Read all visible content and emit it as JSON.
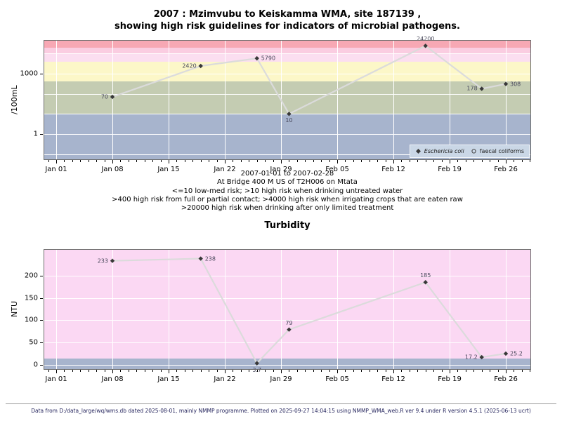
{
  "page": {
    "header": {
      "title_line1": "2007 : Mzimvubu to Keiskamma WMA, site 187139 ,",
      "title_line2": "showing high risk guidelines for indicators of microbial pathogens."
    },
    "subtitle_lines": [
      "2007-01-01 to 2007-02-28",
      "At Bridge 400 M US of T2H006 on Mtata",
      "<=10 low-med risk; >10 high risk when drinking untreated water",
      ">400 high risk from full or partial contact; >4000 high risk when irrigating crops that are eaten raw",
      ">20000 high risk when drinking after only limited treatment"
    ],
    "footer": "Data from D:/data_large/wq/wms.db dated 2025-08-01, mainly NMMP programme. Plotted on 2025-09-27 14:04:15 using NMMP_WMA_web.R ver 9.4 under R version 4.5.1 (2025-06-13 ucrt)"
  },
  "chart_data": [
    {
      "name": "microbial-indicators",
      "type": "line",
      "yscale": "log",
      "ylabel": "/100mL",
      "ylim_hint": [
        0.05,
        50000
      ],
      "line_color": "#dbdbdb",
      "marker_color": "#383838",
      "y_ticks": [
        {
          "value": 1000,
          "label": "1000"
        },
        {
          "value": 1,
          "label": "1"
        }
      ],
      "y_gridlines": [
        0.1,
        1,
        10,
        100,
        1000,
        10000
      ],
      "x_ticks": [
        {
          "day": 0,
          "label": "Jan 01"
        },
        {
          "day": 7,
          "label": "Jan 08"
        },
        {
          "day": 14,
          "label": "Jan 15"
        },
        {
          "day": 21,
          "label": "Jan 22"
        },
        {
          "day": 28,
          "label": "Jan 29"
        },
        {
          "day": 35,
          "label": "Feb 05"
        },
        {
          "day": 42,
          "label": "Feb 12"
        },
        {
          "day": 49,
          "label": "Feb 19"
        },
        {
          "day": 56,
          "label": "Feb 26"
        }
      ],
      "bands": [
        {
          "from_value": null,
          "to_value": 10,
          "color": "#a7b4cd",
          "meaning": "<=10 low-med risk"
        },
        {
          "from_value": 10,
          "to_value": 400,
          "color": "#c4ccb2",
          "meaning": ">10 high risk when drinking untreated water"
        },
        {
          "from_value": 400,
          "to_value": 4000,
          "color": "#fcf7c8",
          "meaning": ">400 high risk from full or partial contact"
        },
        {
          "from_value": 4000,
          "to_value": 10000,
          "color": "#fbdef0",
          "meaning": ">4000 high risk when irrigating crops that are eaten raw"
        },
        {
          "from_value": 10000,
          "to_value": 20000,
          "color": "#facde1",
          "meaning": "4000-20000 risk band (upper half)"
        },
        {
          "from_value": 20000,
          "to_value": null,
          "color": "#f7a8b4",
          "meaning": ">20000 high risk when drinking after only limited treatment"
        }
      ],
      "series": [
        {
          "name": "Eschericia coli",
          "marker": "filled-diamond",
          "points": [
            {
              "date": "Jan 08",
              "day": 7,
              "value": 70,
              "label": "70",
              "label_pos": "left"
            },
            {
              "date": "Jan 19",
              "day": 18,
              "value": 2420,
              "label": "2420",
              "label_pos": "left"
            },
            {
              "date": "Jan 26",
              "day": 25,
              "value": 5790,
              "label": "5790",
              "label_pos": "right"
            },
            {
              "date": "Jan 30",
              "day": 29,
              "value": 10,
              "label": "10",
              "label_pos": "below"
            },
            {
              "date": "Feb 16",
              "day": 46,
              "value": 24200,
              "label": "24200",
              "label_pos": "above"
            },
            {
              "date": "Feb 23",
              "day": 53,
              "value": 178,
              "label": "178",
              "label_pos": "left"
            },
            {
              "date": "Feb 26",
              "day": 56,
              "value": 308,
              "label": "308",
              "label_pos": "right"
            }
          ]
        }
      ],
      "legend": [
        {
          "label": "Eschericia coli",
          "marker": "filled-diamond",
          "italic": true
        },
        {
          "label": "faecal coliforms",
          "marker": "open-circle",
          "italic": false
        }
      ],
      "legend_bg": "#cad7e6"
    },
    {
      "name": "turbidity",
      "title": "Turbidity",
      "type": "line",
      "yscale": "linear",
      "ylabel": "NTU",
      "ylim_hint": [
        -13,
        259
      ],
      "line_color": "#dbdbdb",
      "marker_color": "#383838",
      "y_ticks": [
        {
          "value": 0,
          "label": "0"
        },
        {
          "value": 50,
          "label": "50"
        },
        {
          "value": 100,
          "label": "100"
        },
        {
          "value": 150,
          "label": "150"
        },
        {
          "value": 200,
          "label": "200"
        }
      ],
      "y_gridlines": [
        0,
        50,
        100,
        150,
        200
      ],
      "x_ticks": [
        {
          "day": 0,
          "label": "Jan 01"
        },
        {
          "day": 7,
          "label": "Jan 08"
        },
        {
          "day": 14,
          "label": "Jan 15"
        },
        {
          "day": 21,
          "label": "Jan 22"
        },
        {
          "day": 28,
          "label": "Jan 29"
        },
        {
          "day": 35,
          "label": "Feb 05"
        },
        {
          "day": 42,
          "label": "Feb 12"
        },
        {
          "day": 49,
          "label": "Feb 19"
        },
        {
          "day": 56,
          "label": "Feb 26"
        }
      ],
      "bands": [
        {
          "from_value": null,
          "to_value": 14,
          "color": "#a7b4cd",
          "meaning": "low turbidity guideline band"
        },
        {
          "from_value": 14,
          "to_value": null,
          "color": "#fbd8f3",
          "meaning": "above guideline"
        }
      ],
      "series": [
        {
          "name": "Turbidity",
          "marker": "filled-diamond",
          "points": [
            {
              "date": "Jan 08",
              "day": 7,
              "value": 233,
              "label": "233",
              "label_pos": "left"
            },
            {
              "date": "Jan 19",
              "day": 18,
              "value": 238,
              "label": "238",
              "label_pos": "right"
            },
            {
              "date": "Jan 26",
              "day": 25,
              "value": 3.7,
              "label": "3.7",
              "label_pos": "below"
            },
            {
              "date": "Jan 30",
              "day": 29,
              "value": 79,
              "label": "79",
              "label_pos": "above"
            },
            {
              "date": "Feb 16",
              "day": 46,
              "value": 185,
              "label": "185",
              "label_pos": "above"
            },
            {
              "date": "Feb 23",
              "day": 53,
              "value": 17.2,
              "label": "17.2",
              "label_pos": "left"
            },
            {
              "date": "Feb 26",
              "day": 56,
              "value": 25.2,
              "label": "25.2",
              "label_pos": "right"
            }
          ]
        }
      ]
    }
  ]
}
